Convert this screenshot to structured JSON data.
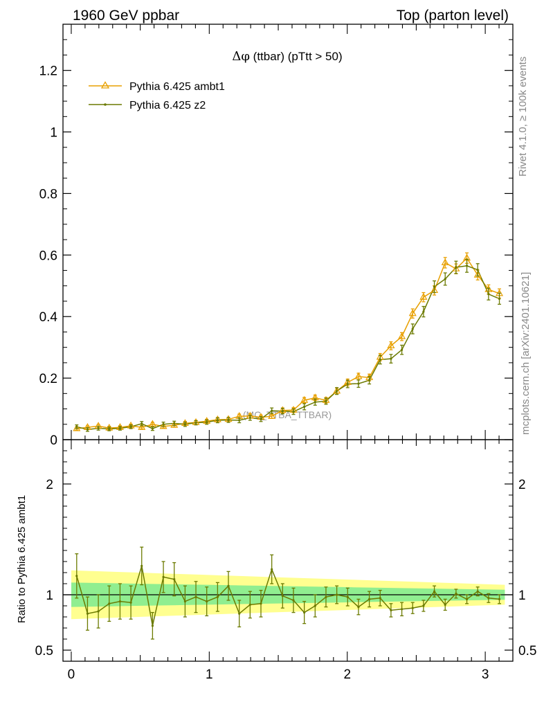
{
  "header": {
    "left_title": "1960 GeV ppbar",
    "right_title": "Top (parton level)"
  },
  "side_labels": {
    "rivet": "Rivet 4.1.0, ≥ 100k events",
    "mcplots": "mcplots.cern.ch [arXiv:2401.10621]"
  },
  "colors": {
    "ambt1": "#e8a000",
    "z2": "#6b7a00",
    "band_outer": "#ffff90",
    "band_inner": "#90ee90"
  },
  "chart_data": [
    {
      "type": "line",
      "title": "Δφ (ttbar) (pTtt > 50)",
      "title_symbol": "Δφ",
      "title_rest": " (ttbar) (pTtt > 50)",
      "watermark": "(MC_TTBA_TTBAR)",
      "xlim": [
        -0.06,
        3.2
      ],
      "ylim": [
        0,
        1.35
      ],
      "yticks": [
        0,
        0.2,
        0.4,
        0.6,
        0.8,
        1,
        1.2
      ],
      "ytick_labels": [
        "0",
        "0.2",
        "0.4",
        "0.6",
        "0.8",
        "1",
        "1.2"
      ],
      "legend": [
        "Pythia 6.425 ambt1",
        "Pythia 6.425 z2"
      ],
      "legend_position": "top-left",
      "x": [
        0.0393,
        0.1178,
        0.1963,
        0.2749,
        0.3534,
        0.432,
        0.5105,
        0.589,
        0.6676,
        0.7461,
        0.8247,
        0.9032,
        0.9817,
        1.0603,
        1.1388,
        1.2174,
        1.2959,
        1.3744,
        1.453,
        1.5315,
        1.6101,
        1.6886,
        1.7671,
        1.8457,
        1.9242,
        2.0028,
        2.0813,
        2.1598,
        2.2384,
        2.3169,
        2.3955,
        2.474,
        2.5525,
        2.6311,
        2.7096,
        2.7882,
        2.8667,
        2.9452,
        3.0238,
        3.1023
      ],
      "series": [
        {
          "name": "Pythia 6.425 ambt1",
          "values": [
            0.036,
            0.04,
            0.044,
            0.038,
            0.04,
            0.045,
            0.04,
            0.05,
            0.043,
            0.047,
            0.053,
            0.056,
            0.06,
            0.065,
            0.066,
            0.076,
            0.077,
            0.073,
            0.076,
            0.095,
            0.096,
            0.128,
            0.136,
            0.128,
            0.158,
            0.186,
            0.205,
            0.202,
            0.268,
            0.305,
            0.335,
            0.41,
            0.463,
            0.485,
            0.575,
            0.555,
            0.59,
            0.535,
            0.488,
            0.475
          ],
          "errors": [
            0.005,
            0.005,
            0.005,
            0.005,
            0.005,
            0.005,
            0.005,
            0.006,
            0.005,
            0.006,
            0.006,
            0.006,
            0.006,
            0.006,
            0.006,
            0.007,
            0.007,
            0.007,
            0.007,
            0.008,
            0.008,
            0.009,
            0.009,
            0.009,
            0.01,
            0.011,
            0.011,
            0.011,
            0.012,
            0.013,
            0.013,
            0.015,
            0.015,
            0.015,
            0.017,
            0.016,
            0.017,
            0.016,
            0.015,
            0.015
          ]
        },
        {
          "name": "Pythia 6.425 z2",
          "values": [
            0.042,
            0.033,
            0.037,
            0.035,
            0.037,
            0.042,
            0.052,
            0.036,
            0.05,
            0.053,
            0.05,
            0.055,
            0.057,
            0.063,
            0.064,
            0.063,
            0.071,
            0.067,
            0.094,
            0.093,
            0.091,
            0.107,
            0.122,
            0.125,
            0.158,
            0.181,
            0.182,
            0.193,
            0.26,
            0.263,
            0.292,
            0.36,
            0.416,
            0.497,
            0.522,
            0.56,
            0.565,
            0.552,
            0.473,
            0.458
          ],
          "errors": [
            0.006,
            0.006,
            0.006,
            0.006,
            0.006,
            0.006,
            0.007,
            0.006,
            0.007,
            0.007,
            0.007,
            0.007,
            0.007,
            0.008,
            0.008,
            0.008,
            0.008,
            0.008,
            0.009,
            0.009,
            0.009,
            0.01,
            0.01,
            0.01,
            0.011,
            0.012,
            0.012,
            0.012,
            0.014,
            0.014,
            0.015,
            0.016,
            0.017,
            0.019,
            0.02,
            0.02,
            0.021,
            0.02,
            0.019,
            0.018
          ]
        }
      ]
    },
    {
      "type": "line",
      "title": "ratio",
      "ylabel": "Ratio to Pythia 6.425 ambt1",
      "xlim": [
        -0.06,
        3.2
      ],
      "ylim": [
        0.4,
        2.4
      ],
      "xticks": [
        0,
        1,
        2,
        3
      ],
      "xtick_labels": [
        "0",
        "1",
        "2",
        "3"
      ],
      "yticks": [
        0.5,
        1,
        2
      ],
      "ytick_labels": [
        "0.5",
        "1",
        "2"
      ],
      "reference_line": 1,
      "band_x": [
        0.0,
        3.1416
      ],
      "band_outer_halfwidth": [
        0.22,
        0.09
      ],
      "band_inner_halfwidth": [
        0.11,
        0.045
      ],
      "series": [
        {
          "name": "Pythia 6.425 z2",
          "values": [
            1.17,
            0.83,
            0.85,
            0.92,
            0.94,
            0.93,
            1.26,
            0.72,
            1.16,
            1.14,
            0.94,
            0.98,
            0.94,
            0.98,
            1.08,
            0.83,
            0.91,
            0.92,
            1.23,
            0.99,
            0.95,
            0.84,
            0.9,
            0.98,
            1.0,
            0.98,
            0.89,
            0.96,
            0.97,
            0.86,
            0.87,
            0.88,
            0.9,
            1.03,
            0.91,
            1.01,
            0.96,
            1.03,
            0.97,
            0.96
          ]
        }
      ],
      "errors": [
        0.2,
        0.15,
        0.15,
        0.16,
        0.16,
        0.15,
        0.17,
        0.12,
        0.14,
        0.15,
        0.14,
        0.14,
        0.13,
        0.13,
        0.13,
        0.12,
        0.12,
        0.12,
        0.13,
        0.11,
        0.11,
        0.1,
        0.1,
        0.09,
        0.08,
        0.08,
        0.07,
        0.07,
        0.07,
        0.06,
        0.06,
        0.05,
        0.05,
        0.05,
        0.05,
        0.04,
        0.04,
        0.04,
        0.04,
        0.04
      ]
    }
  ]
}
